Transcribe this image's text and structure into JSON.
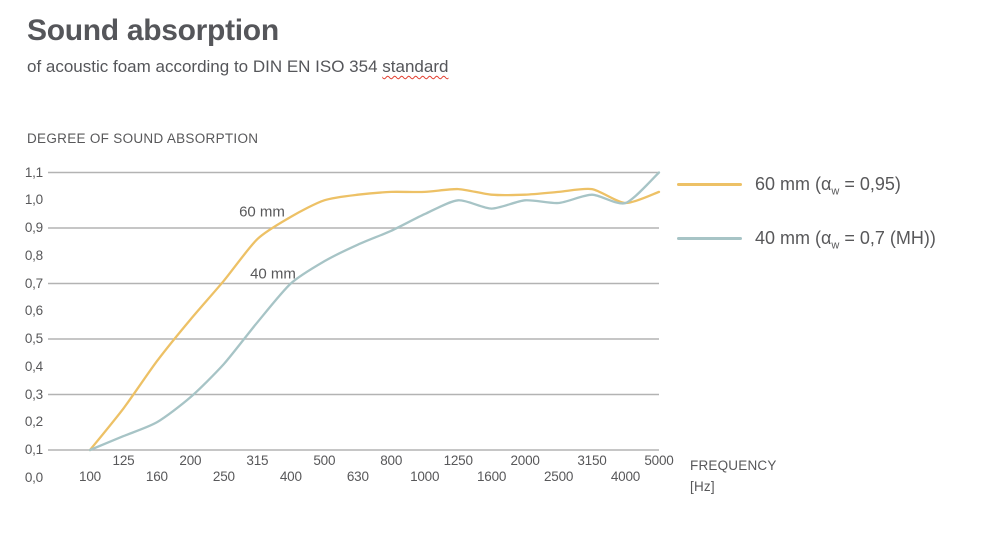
{
  "header": {
    "title": "Sound absorption",
    "subtitle_prefix": "of acoustic foam according to DIN EN ISO 354 ",
    "subtitle_underlined_word": "standard"
  },
  "chart": {
    "y_axis_title": "DEGREE OF SOUND ABSORPTION",
    "x_axis_title": "FREQUENCY",
    "x_axis_unit": "[Hz]",
    "y_tick_labels": [
      "1,1",
      "1,0",
      "0,9",
      "0,8",
      "0,7",
      "0,6",
      "0,5",
      "0,4",
      "0,3",
      "0,2",
      "0,1",
      "0,0"
    ]
  },
  "legend": {
    "items": [
      {
        "prefix": "60 mm (α",
        "sub": "w",
        "suffix": " = 0,95)",
        "color": "#edc166"
      },
      {
        "prefix": "40 mm (α",
        "sub": "w",
        "suffix": " = 0,7 (MH))",
        "color": "#a7c4c6"
      }
    ]
  },
  "colors": {
    "series_60mm": "#edc166",
    "series_40mm": "#a7c4c6",
    "gridline": "#b3b3b3",
    "text": "#58585a",
    "spellcheck_underline": "#e23d2e"
  },
  "chart_data": {
    "type": "line",
    "title": "Sound absorption of acoustic foam according to DIN EN ISO 354",
    "xlabel": "FREQUENCY [Hz]",
    "ylabel": "DEGREE OF SOUND ABSORPTION",
    "categories": [
      100,
      125,
      160,
      200,
      250,
      315,
      400,
      500,
      630,
      800,
      1000,
      1250,
      1600,
      2000,
      2500,
      3150,
      4000,
      5000
    ],
    "x_scale": "categorical third-octave bands",
    "ylim": [
      0.0,
      1.1
    ],
    "ytick_step": 0.1,
    "gridline_values": [
      1.1,
      0.9,
      0.7,
      0.5,
      0.3,
      0.1
    ],
    "grid": "horizontal only",
    "legend_position": "right",
    "series": [
      {
        "name": "60 mm (αw = 0,95)",
        "inline_label": "60 mm",
        "color": "#edc166",
        "values": [
          0.1,
          0.25,
          0.42,
          0.57,
          0.71,
          0.86,
          0.94,
          1.0,
          1.02,
          1.03,
          1.03,
          1.04,
          1.02,
          1.02,
          1.03,
          1.04,
          0.99,
          1.03
        ]
      },
      {
        "name": "40 mm (αw = 0,7 (MH))",
        "inline_label": "40 mm",
        "color": "#a7c4c6",
        "values": [
          0.1,
          0.15,
          0.2,
          0.29,
          0.41,
          0.56,
          0.7,
          0.78,
          0.84,
          0.89,
          0.95,
          1.0,
          0.97,
          1.0,
          0.99,
          1.02,
          0.99,
          1.1
        ]
      }
    ]
  }
}
